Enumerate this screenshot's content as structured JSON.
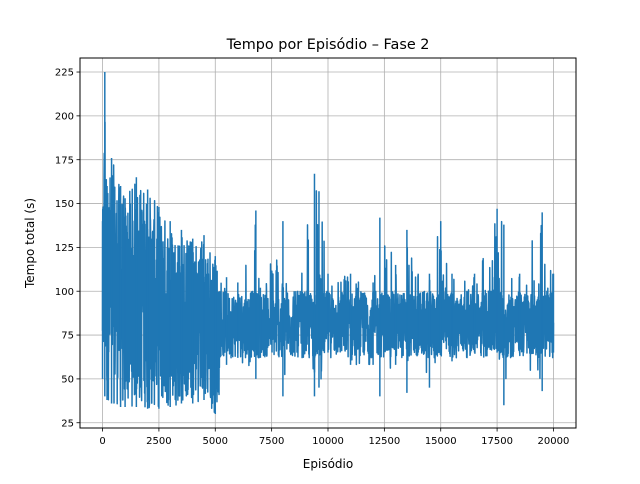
{
  "chart_data": {
    "type": "line",
    "title": "Tempo por Episódio – Fase 2",
    "xlabel": "Episódio",
    "ylabel": "Tempo total (s)",
    "xlim": [
      -1000,
      21000
    ],
    "ylim": [
      22,
      233
    ],
    "xticks": [
      0,
      2500,
      5000,
      7500,
      10000,
      12500,
      15000,
      17500,
      20000
    ],
    "yticks": [
      25,
      50,
      75,
      100,
      125,
      150,
      175,
      200,
      225
    ],
    "grid": true,
    "line_color": "#1f77b4",
    "series": [
      {
        "envelope": [
          {
            "x": 0,
            "min": 50,
            "max": 140
          },
          {
            "x": 100,
            "min": 40,
            "max": 225
          },
          {
            "x": 200,
            "min": 38,
            "max": 160
          },
          {
            "x": 400,
            "min": 36,
            "max": 176
          },
          {
            "x": 800,
            "min": 34,
            "max": 160
          },
          {
            "x": 1000,
            "min": 34,
            "max": 153
          },
          {
            "x": 1500,
            "min": 34,
            "max": 165
          },
          {
            "x": 2000,
            "min": 33,
            "max": 158
          },
          {
            "x": 2500,
            "min": 33,
            "max": 148
          },
          {
            "x": 3000,
            "min": 34,
            "max": 140
          },
          {
            "x": 3500,
            "min": 36,
            "max": 135
          },
          {
            "x": 4000,
            "min": 36,
            "max": 130
          },
          {
            "x": 4500,
            "min": 38,
            "max": 132
          },
          {
            "x": 5000,
            "min": 30,
            "max": 120
          },
          {
            "x": 5500,
            "min": 58,
            "max": 108
          },
          {
            "x": 6000,
            "min": 62,
            "max": 105
          },
          {
            "x": 6800,
            "min": 50,
            "max": 146
          },
          {
            "x": 7000,
            "min": 62,
            "max": 102
          },
          {
            "x": 8000,
            "min": 40,
            "max": 140
          },
          {
            "x": 8500,
            "min": 65,
            "max": 100
          },
          {
            "x": 9400,
            "min": 40,
            "max": 167
          },
          {
            "x": 9600,
            "min": 45,
            "max": 157
          },
          {
            "x": 10000,
            "min": 65,
            "max": 110
          },
          {
            "x": 11000,
            "min": 58,
            "max": 110
          },
          {
            "x": 12000,
            "min": 58,
            "max": 105
          },
          {
            "x": 12300,
            "min": 40,
            "max": 142
          },
          {
            "x": 13000,
            "min": 58,
            "max": 115
          },
          {
            "x": 13500,
            "min": 42,
            "max": 135
          },
          {
            "x": 14000,
            "min": 65,
            "max": 110
          },
          {
            "x": 14500,
            "min": 45,
            "max": 110
          },
          {
            "x": 15000,
            "min": 65,
            "max": 140
          },
          {
            "x": 15500,
            "min": 60,
            "max": 110
          },
          {
            "x": 16500,
            "min": 65,
            "max": 110
          },
          {
            "x": 17500,
            "min": 65,
            "max": 147
          },
          {
            "x": 17800,
            "min": 35,
            "max": 138
          },
          {
            "x": 18500,
            "min": 65,
            "max": 110
          },
          {
            "x": 19500,
            "min": 43,
            "max": 145
          },
          {
            "x": 20000,
            "min": 65,
            "max": 110
          }
        ],
        "band_low": 62,
        "band_high": 100
      }
    ]
  }
}
